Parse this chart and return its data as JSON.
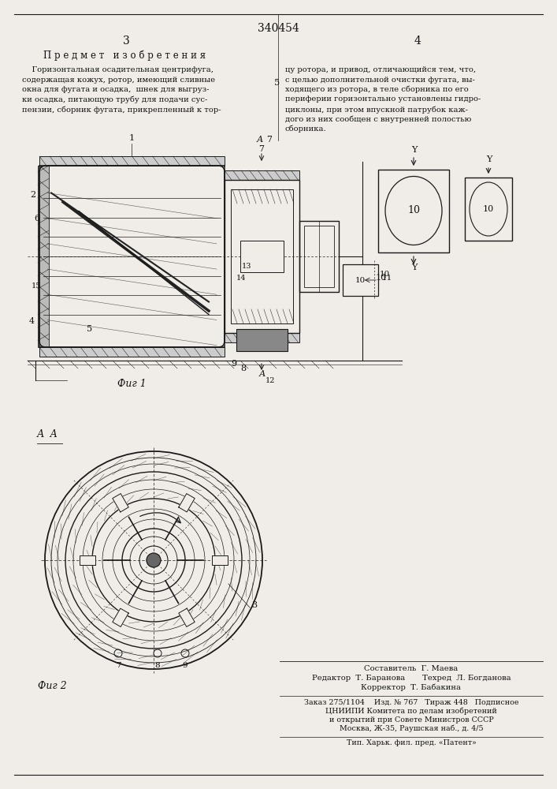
{
  "patent_number": "340454",
  "page_left": "3",
  "page_right": "4",
  "section_title": "П р е д м е т   и з о б р е т е н и я",
  "text_left": "    Горизонтальная осадительная центрифуга,\nсодержащая кожух, ротор, имеющий сливные\nокна для фугата и осадка,  шнек для выгруз-\nки осадка, питающую трубу для подачи сус-\nпензии, сборник фугата, прикрепленный к тор-",
  "text_right_num": "5",
  "text_right": "цу ротора, и привод, отличающийся тем, что,\nс целью дополнительной очистки фугата, вы-\nходящего из ротора, в теле сборника по его\nпериферии горизонтально установлены гидро-\nциклоны, при этом впускной патрубок каж-\nдого из них сообщен с внутренней полостью\nсборника.",
  "fig1_caption": "Фиг 1",
  "fig2_caption": "Фиг 2",
  "fig2_label": "А  А",
  "staff_line1": "Составитель  Г. Маева",
  "staff_line2": "Редактор  Т. Баранова       Техред  Л. Богданова",
  "staff_line3": "Корректор  Т. Бабакина",
  "info_line1": "Заказ 275/1104    Изд. № 767   Тираж 448   Подписное",
  "info_line2": "ЦНИИПИ Комитета по делам изобретений",
  "info_line3": "и открытий при Совете Министров СССР",
  "info_line4": "Москва, Ж-35, Раушская наб., д. 4/5",
  "printer_line": "Тип. Харьк. фил. пред. «Патент»",
  "bg_color": "#f0ede8",
  "line_color": "#1a1a1a",
  "text_color": "#111111"
}
